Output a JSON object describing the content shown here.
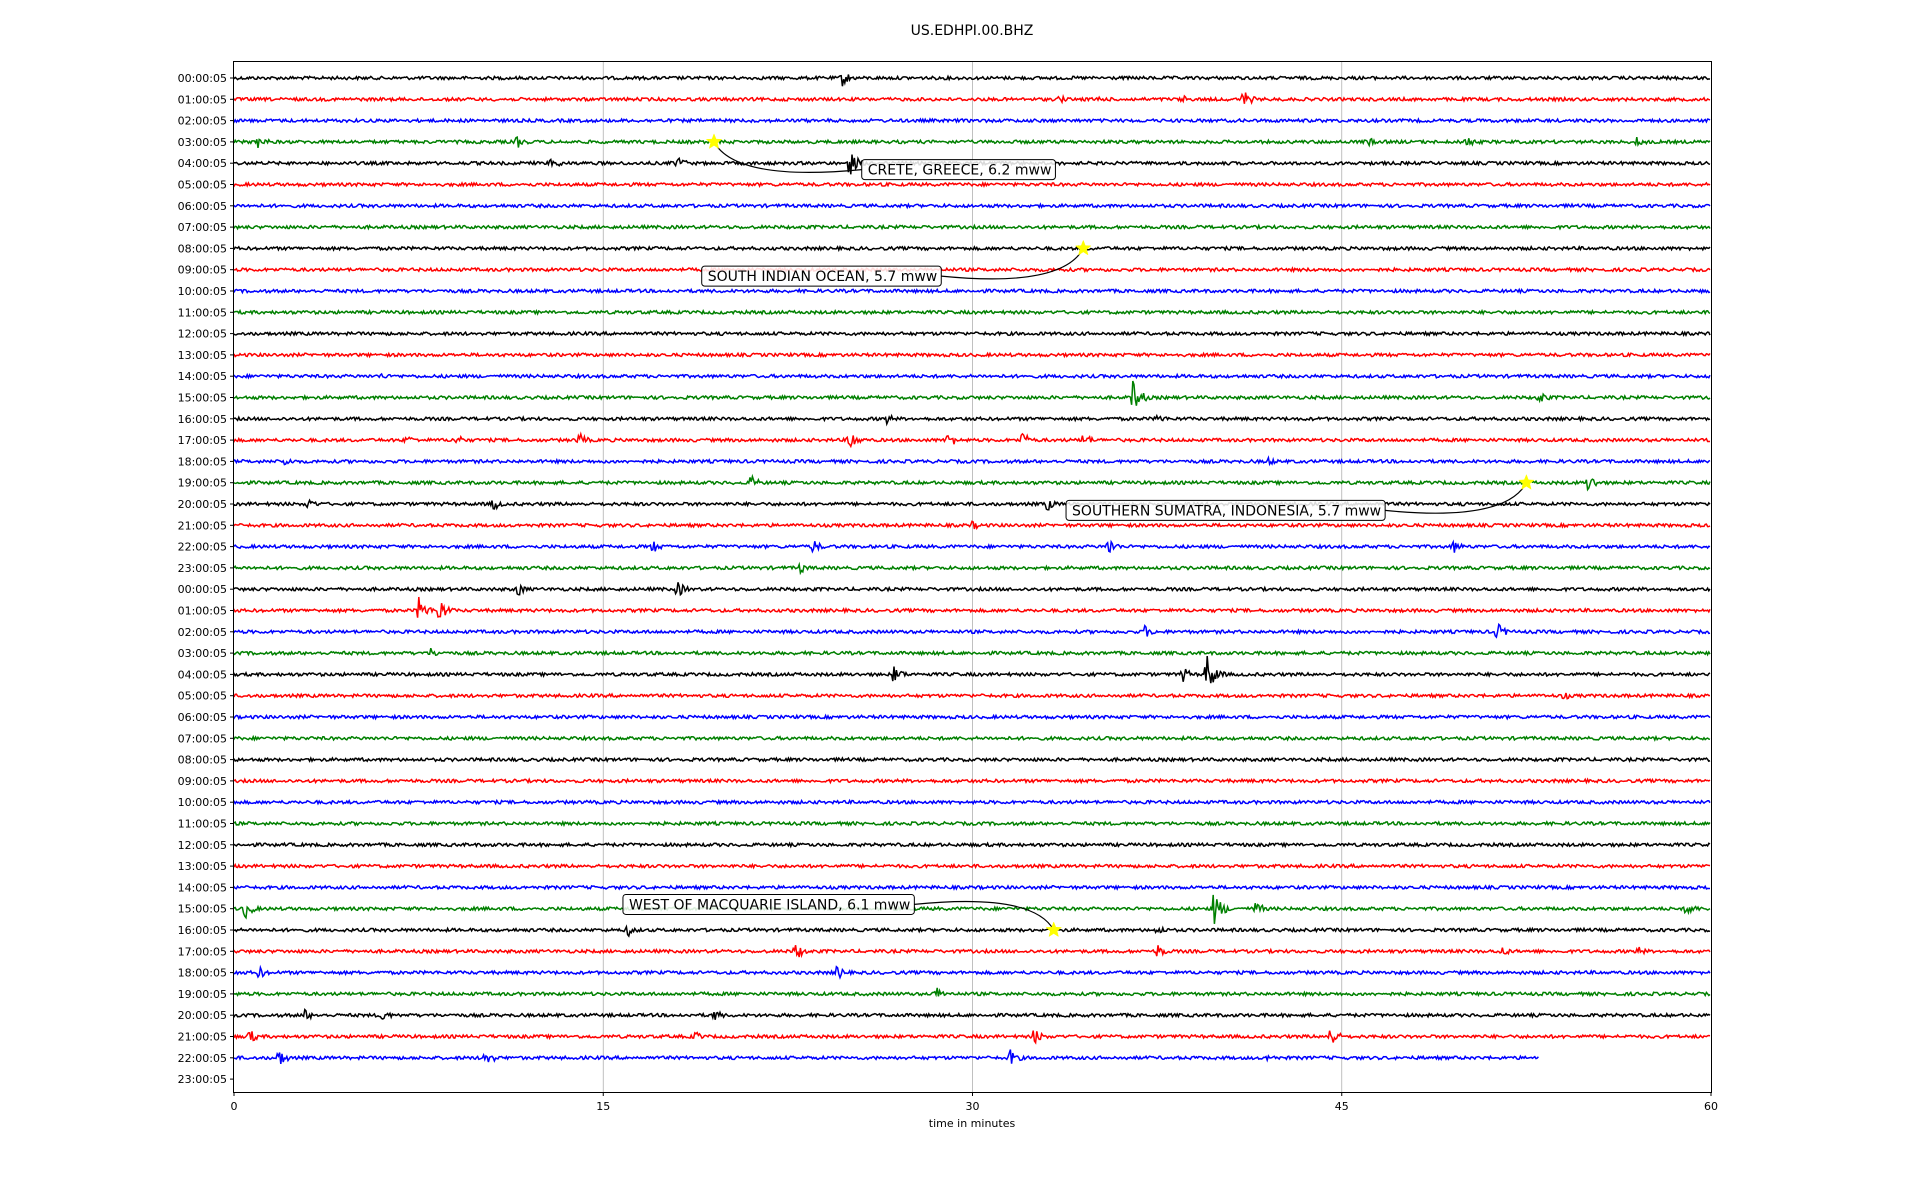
{
  "chart_data": {
    "type": "line",
    "title": "US.EDHPI.00.BHZ",
    "xlabel": "time in minutes",
    "ylabel": "",
    "xlim": [
      0,
      60
    ],
    "xticks": [
      "0",
      "15",
      "30",
      "45",
      "60"
    ],
    "xtick_values": [
      0,
      15,
      30,
      45,
      60
    ],
    "grid": "vertical lines at 15-minute ticks",
    "row_labels": [
      "00:00:05",
      "01:00:05",
      "02:00:05",
      "03:00:05",
      "04:00:05",
      "05:00:05",
      "06:00:05",
      "07:00:05",
      "08:00:05",
      "09:00:05",
      "10:00:05",
      "11:00:05",
      "12:00:05",
      "13:00:05",
      "14:00:05",
      "15:00:05",
      "16:00:05",
      "17:00:05",
      "18:00:05",
      "19:00:05",
      "20:00:05",
      "21:00:05",
      "22:00:05",
      "23:00:05",
      "00:00:05",
      "01:00:05",
      "02:00:05",
      "03:00:05",
      "04:00:05",
      "05:00:05",
      "06:00:05",
      "07:00:05",
      "08:00:05",
      "09:00:05",
      "10:00:05",
      "11:00:05",
      "12:00:05",
      "13:00:05",
      "14:00:05",
      "15:00:05",
      "16:00:05",
      "17:00:05",
      "18:00:05",
      "19:00:05",
      "20:00:05",
      "21:00:05",
      "22:00:05",
      "23:00:05"
    ],
    "row_colors": [
      "#000000",
      "#ff0000",
      "#0000ff",
      "#008000"
    ],
    "last_trace_end_minute": 53.0,
    "bursts": [
      {
        "row": 0,
        "minute": 24.7,
        "amp": 9
      },
      {
        "row": 1,
        "minute": 33.5,
        "amp": 5
      },
      {
        "row": 1,
        "minute": 35.0,
        "amp": 5
      },
      {
        "row": 1,
        "minute": 38.5,
        "amp": 5
      },
      {
        "row": 1,
        "minute": 41.0,
        "amp": 10
      },
      {
        "row": 3,
        "minute": 1.0,
        "amp": 8
      },
      {
        "row": 3,
        "minute": 11.5,
        "amp": 7
      },
      {
        "row": 3,
        "minute": 46.0,
        "amp": 6
      },
      {
        "row": 3,
        "minute": 50.0,
        "amp": 8
      },
      {
        "row": 3,
        "minute": 57.0,
        "amp": 6
      },
      {
        "row": 4,
        "minute": 12.9,
        "amp": 8
      },
      {
        "row": 4,
        "minute": 18.0,
        "amp": 8
      },
      {
        "row": 4,
        "minute": 25.0,
        "amp": 14
      },
      {
        "row": 14,
        "minute": 6.0,
        "amp": 4
      },
      {
        "row": 15,
        "minute": 36.5,
        "amp": 18
      },
      {
        "row": 15,
        "minute": 53.0,
        "amp": 8
      },
      {
        "row": 16,
        "minute": 26.5,
        "amp": 6
      },
      {
        "row": 16,
        "minute": 37.5,
        "amp": 6
      },
      {
        "row": 17,
        "minute": 7.0,
        "amp": 6
      },
      {
        "row": 17,
        "minute": 9.0,
        "amp": 7
      },
      {
        "row": 17,
        "minute": 14.0,
        "amp": 8
      },
      {
        "row": 17,
        "minute": 25.0,
        "amp": 12
      },
      {
        "row": 17,
        "minute": 29.0,
        "amp": 9
      },
      {
        "row": 17,
        "minute": 32.0,
        "amp": 9
      },
      {
        "row": 17,
        "minute": 34.5,
        "amp": 8
      },
      {
        "row": 18,
        "minute": 2.0,
        "amp": 6
      },
      {
        "row": 18,
        "minute": 42.0,
        "amp": 5
      },
      {
        "row": 19,
        "minute": 21.0,
        "amp": 8
      },
      {
        "row": 19,
        "minute": 55.0,
        "amp": 10
      },
      {
        "row": 20,
        "minute": 3.0,
        "amp": 7
      },
      {
        "row": 20,
        "minute": 10.5,
        "amp": 8
      },
      {
        "row": 20,
        "minute": 33.0,
        "amp": 8
      },
      {
        "row": 21,
        "minute": 30.0,
        "amp": 5
      },
      {
        "row": 22,
        "minute": 17.0,
        "amp": 7
      },
      {
        "row": 22,
        "minute": 23.5,
        "amp": 8
      },
      {
        "row": 22,
        "minute": 35.5,
        "amp": 10
      },
      {
        "row": 22,
        "minute": 49.5,
        "amp": 8
      },
      {
        "row": 23,
        "minute": 23.0,
        "amp": 6
      },
      {
        "row": 24,
        "minute": 11.5,
        "amp": 8
      },
      {
        "row": 24,
        "minute": 18.0,
        "amp": 9
      },
      {
        "row": 25,
        "minute": 7.5,
        "amp": 14
      },
      {
        "row": 25,
        "minute": 8.3,
        "amp": 14
      },
      {
        "row": 26,
        "minute": 37.0,
        "amp": 7
      },
      {
        "row": 26,
        "minute": 51.3,
        "amp": 10
      },
      {
        "row": 27,
        "minute": 8.0,
        "amp": 6
      },
      {
        "row": 28,
        "minute": 26.8,
        "amp": 10
      },
      {
        "row": 28,
        "minute": 38.5,
        "amp": 9
      },
      {
        "row": 28,
        "minute": 39.5,
        "amp": 22
      },
      {
        "row": 29,
        "minute": 54.0,
        "amp": 5
      },
      {
        "row": 39,
        "minute": 39.8,
        "amp": 18
      },
      {
        "row": 39,
        "minute": 41.5,
        "amp": 8
      },
      {
        "row": 39,
        "minute": 59.0,
        "amp": 9
      },
      {
        "row": 39,
        "minute": 0.4,
        "amp": 12
      },
      {
        "row": 40,
        "minute": 16.0,
        "amp": 7
      },
      {
        "row": 40,
        "minute": 37.5,
        "amp": 6
      },
      {
        "row": 41,
        "minute": 22.8,
        "amp": 10
      },
      {
        "row": 41,
        "minute": 37.5,
        "amp": 8
      },
      {
        "row": 41,
        "minute": 51.5,
        "amp": 6
      },
      {
        "row": 41,
        "minute": 57.0,
        "amp": 6
      },
      {
        "row": 42,
        "minute": 1.0,
        "amp": 7
      },
      {
        "row": 42,
        "minute": 24.5,
        "amp": 8
      },
      {
        "row": 43,
        "minute": 28.5,
        "amp": 8
      },
      {
        "row": 44,
        "minute": 2.8,
        "amp": 8
      },
      {
        "row": 44,
        "minute": 6.0,
        "amp": 7
      },
      {
        "row": 44,
        "minute": 19.5,
        "amp": 7
      },
      {
        "row": 45,
        "minute": 0.6,
        "amp": 8
      },
      {
        "row": 45,
        "minute": 18.7,
        "amp": 6
      },
      {
        "row": 45,
        "minute": 32.5,
        "amp": 9
      },
      {
        "row": 45,
        "minute": 44.5,
        "amp": 12
      },
      {
        "row": 46,
        "minute": 1.8,
        "amp": 10
      },
      {
        "row": 46,
        "minute": 10.2,
        "amp": 10
      },
      {
        "row": 46,
        "minute": 31.5,
        "amp": 10
      },
      {
        "row": 46,
        "minute": 42.0,
        "amp": 5
      }
    ],
    "annotations": [
      {
        "text": "CRETE, GREECE, 6.2 mww",
        "row": 3,
        "minute": 19.5,
        "label_row": 4.3,
        "label_minute": 25.5
      },
      {
        "text": "SOUTH INDIAN OCEAN, 5.7 mww",
        "row": 8,
        "minute": 34.5,
        "label_row": 9.3,
        "label_minute": 19.0
      },
      {
        "text": "SOUTHERN SUMATRA, INDONESIA, 5.7 mww",
        "row": 19,
        "minute": 52.5,
        "label_row": 20.3,
        "label_minute": 33.8
      },
      {
        "text": "WEST OF MACQUARIE ISLAND, 6.1 mww",
        "row": 40,
        "minute": 33.3,
        "label_row": 38.8,
        "label_minute": 15.8
      }
    ]
  }
}
